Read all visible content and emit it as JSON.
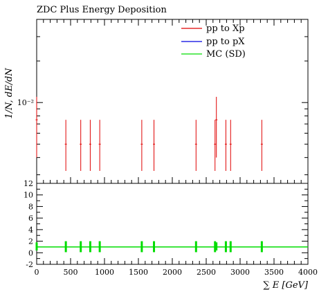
{
  "chart_data": [
    {
      "type": "scatter",
      "panel": "main",
      "title": "ZDC Plus Energy Deposition",
      "ylabel": "1/N, dE/dN",
      "xlabel": "",
      "xlim": [
        0,
        4000
      ],
      "ylim": [
        0.0026,
        0.04
      ],
      "yscale": "log",
      "grid": false,
      "legend_placement": "top-right",
      "ytick_labels": [
        {
          "value": 0.01,
          "label": "10⁻²"
        }
      ],
      "series": [
        {
          "name": "pp to Xp",
          "color": "#e00000",
          "points": [
            {
              "x": 0,
              "y": 0.0075,
              "hi": 0.011,
              "lo": 0.004
            },
            {
              "x": 430,
              "y": 0.005,
              "hi": 0.0075,
              "lo": 0.0032
            },
            {
              "x": 650,
              "y": 0.005,
              "hi": 0.0075,
              "lo": 0.0032
            },
            {
              "x": 790,
              "y": 0.005,
              "hi": 0.0075,
              "lo": 0.0032
            },
            {
              "x": 930,
              "y": 0.005,
              "hi": 0.0075,
              "lo": 0.0032
            },
            {
              "x": 1550,
              "y": 0.005,
              "hi": 0.0075,
              "lo": 0.0032
            },
            {
              "x": 1730,
              "y": 0.005,
              "hi": 0.0075,
              "lo": 0.0032
            },
            {
              "x": 2350,
              "y": 0.005,
              "hi": 0.0075,
              "lo": 0.0032
            },
            {
              "x": 2630,
              "y": 0.005,
              "hi": 0.0075,
              "lo": 0.0032
            },
            {
              "x": 2650,
              "y": 0.0075,
              "hi": 0.011,
              "lo": 0.004
            },
            {
              "x": 2790,
              "y": 0.005,
              "hi": 0.0075,
              "lo": 0.0032
            },
            {
              "x": 2860,
              "y": 0.005,
              "hi": 0.0075,
              "lo": 0.0032
            },
            {
              "x": 3320,
              "y": 0.005,
              "hi": 0.0075,
              "lo": 0.0032
            }
          ]
        },
        {
          "name": "pp to pX",
          "color": "#0000e0",
          "points": []
        },
        {
          "name": "MC (SD)",
          "color": "#00dd00",
          "points": []
        }
      ]
    },
    {
      "type": "line",
      "panel": "ratio",
      "xlabel": "∑ E [GeV]",
      "ylabel": "",
      "xlim": [
        0,
        4000
      ],
      "ylim": [
        -2,
        12
      ],
      "grid": false,
      "xticks": [
        0,
        500,
        1000,
        1500,
        2000,
        2500,
        3000,
        3500,
        4000
      ],
      "yticks": [
        -2,
        0,
        2,
        4,
        6,
        8,
        10,
        12
      ],
      "reference_line": {
        "y": 1,
        "color": "#00dd00"
      },
      "error_bars": {
        "color": "#00dd00",
        "x": [
          0,
          430,
          650,
          790,
          930,
          1550,
          1730,
          2350,
          2630,
          2650,
          2790,
          2860,
          3320
        ],
        "lo": [
          0.4,
          0.1,
          0.1,
          0.1,
          0.1,
          0.1,
          0.1,
          0.1,
          0.1,
          0.4,
          0.1,
          0.1,
          0.1
        ],
        "hi": [
          1.8,
          2.0,
          2.0,
          2.0,
          2.0,
          2.0,
          2.0,
          2.0,
          2.0,
          1.8,
          2.0,
          2.0,
          2.0
        ]
      }
    }
  ]
}
